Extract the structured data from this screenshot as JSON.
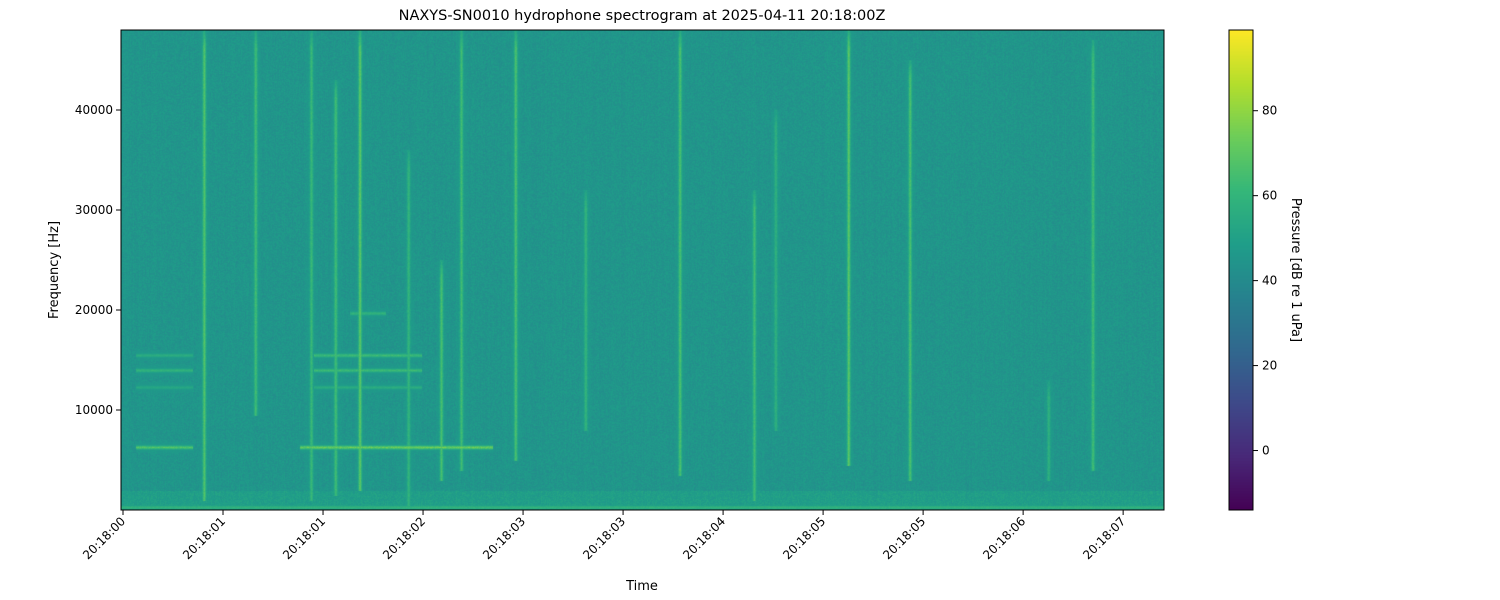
{
  "chart_data": {
    "type": "heatmap",
    "title": "NAXYS-SN0010 hydrophone spectrogram at 2025-04-11 20:18:00Z",
    "xlabel": "Time",
    "ylabel": "Frequency [Hz]",
    "colorbar_label": "Pressure [dB re 1 uPa]",
    "colormap": "viridis",
    "xlim_seconds": [
      0,
      7.3
    ],
    "ylim": [
      0,
      48000
    ],
    "clim": [
      -14,
      99
    ],
    "x_ticks": [
      {
        "t": 0.014,
        "label": "20:18:00"
      },
      {
        "t": 0.714,
        "label": "20:18:01"
      },
      {
        "t": 1.414,
        "label": "20:18:01"
      },
      {
        "t": 2.114,
        "label": "20:18:02"
      },
      {
        "t": 2.814,
        "label": "20:18:03"
      },
      {
        "t": 3.514,
        "label": "20:18:03"
      },
      {
        "t": 4.214,
        "label": "20:18:04"
      },
      {
        "t": 4.914,
        "label": "20:18:05"
      },
      {
        "t": 5.614,
        "label": "20:18:05"
      },
      {
        "t": 6.314,
        "label": "20:18:06"
      },
      {
        "t": 7.014,
        "label": "20:18:07"
      }
    ],
    "y_ticks": [
      10000,
      20000,
      30000,
      40000
    ],
    "colorbar_ticks": [
      0,
      20,
      40,
      60,
      80
    ],
    "background_level_db": 45,
    "broadband_events": [
      {
        "t": 0.58,
        "fmin": 1000,
        "fmax": 48000,
        "db": 68
      },
      {
        "t": 0.94,
        "fmin": 9500,
        "fmax": 48000,
        "db": 64
      },
      {
        "t": 1.33,
        "fmin": 1000,
        "fmax": 48000,
        "db": 62
      },
      {
        "t": 1.5,
        "fmin": 1500,
        "fmax": 43000,
        "db": 64
      },
      {
        "t": 1.67,
        "fmin": 2000,
        "fmax": 48000,
        "db": 70
      },
      {
        "t": 2.01,
        "fmin": 500,
        "fmax": 36000,
        "db": 60
      },
      {
        "t": 2.24,
        "fmin": 3000,
        "fmax": 25000,
        "db": 66
      },
      {
        "t": 2.38,
        "fmin": 4000,
        "fmax": 48000,
        "db": 64
      },
      {
        "t": 2.76,
        "fmin": 5000,
        "fmax": 48000,
        "db": 66
      },
      {
        "t": 3.25,
        "fmin": 8000,
        "fmax": 32000,
        "db": 60
      },
      {
        "t": 3.91,
        "fmin": 3500,
        "fmax": 48000,
        "db": 66
      },
      {
        "t": 4.43,
        "fmin": 1000,
        "fmax": 32000,
        "db": 64
      },
      {
        "t": 4.58,
        "fmin": 8000,
        "fmax": 40000,
        "db": 58
      },
      {
        "t": 5.09,
        "fmin": 4500,
        "fmax": 48000,
        "db": 70
      },
      {
        "t": 5.52,
        "fmin": 3000,
        "fmax": 45000,
        "db": 66
      },
      {
        "t": 6.49,
        "fmin": 3000,
        "fmax": 13000,
        "db": 58
      },
      {
        "t": 6.8,
        "fmin": 4000,
        "fmax": 47000,
        "db": 64
      }
    ],
    "tonal_events": [
      {
        "f": 6300,
        "tmin": 0.1,
        "tmax": 0.5,
        "db": 72
      },
      {
        "f": 6300,
        "tmin": 1.25,
        "tmax": 2.6,
        "db": 78
      },
      {
        "f": 14000,
        "tmin": 0.1,
        "tmax": 0.5,
        "db": 62
      },
      {
        "f": 15500,
        "tmin": 0.1,
        "tmax": 0.5,
        "db": 58
      },
      {
        "f": 12300,
        "tmin": 0.1,
        "tmax": 0.5,
        "db": 55
      },
      {
        "f": 14000,
        "tmin": 1.35,
        "tmax": 2.1,
        "db": 66
      },
      {
        "f": 15500,
        "tmin": 1.35,
        "tmax": 2.1,
        "db": 66
      },
      {
        "f": 12300,
        "tmin": 1.35,
        "tmax": 2.1,
        "db": 58
      },
      {
        "f": 19700,
        "tmin": 1.6,
        "tmax": 1.85,
        "db": 62
      },
      {
        "f": 300,
        "tmin": 0,
        "tmax": 7.3,
        "db": 62
      }
    ]
  }
}
